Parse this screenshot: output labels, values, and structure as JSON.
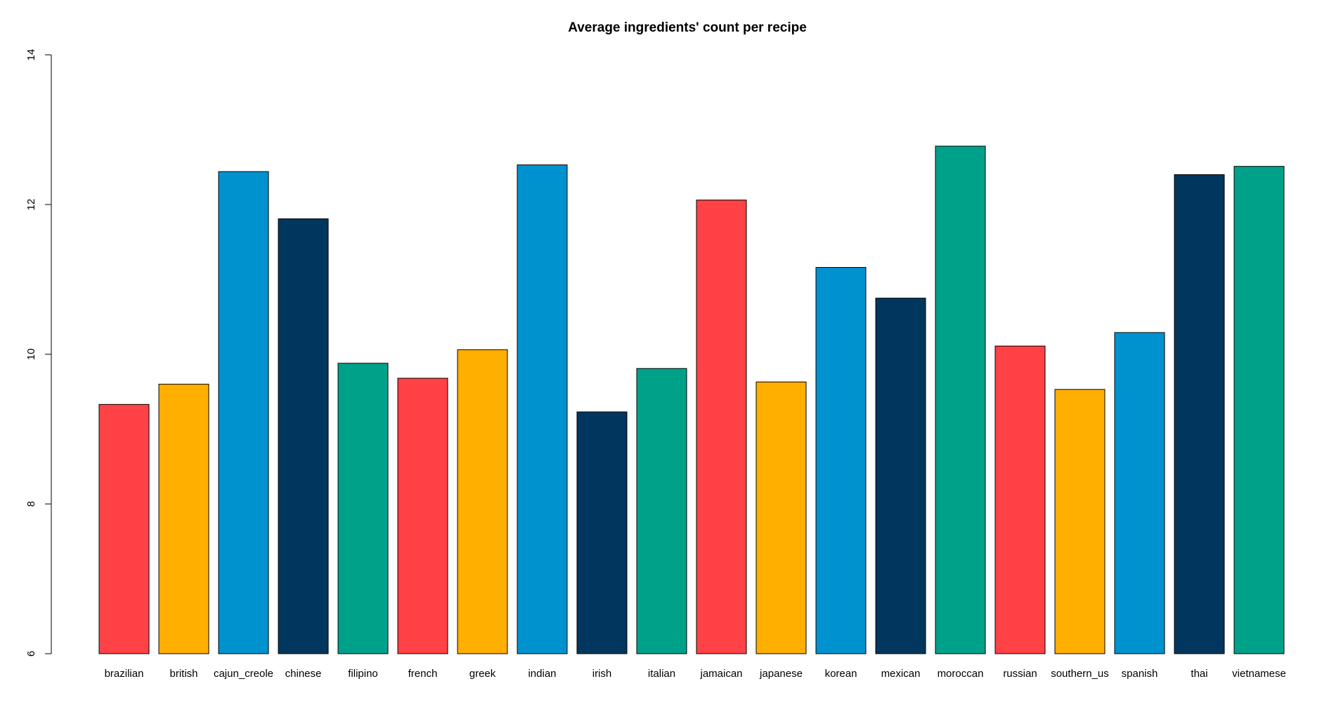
{
  "chart_data": {
    "type": "bar",
    "title": "Average ingredients' count per recipe",
    "xlabel": "",
    "ylabel": "",
    "ylim": [
      6,
      14
    ],
    "yticks": [
      6,
      8,
      10,
      12,
      14
    ],
    "grid": false,
    "categories": [
      "brazilian",
      "british",
      "cajun_creole",
      "chinese",
      "filipino",
      "french",
      "greek",
      "indian",
      "irish",
      "italian",
      "jamaican",
      "japanese",
      "korean",
      "mexican",
      "moroccan",
      "russian",
      "southern_us",
      "spanish",
      "thai",
      "vietnamese"
    ],
    "values": [
      9.33,
      9.6,
      12.44,
      11.81,
      9.88,
      9.68,
      10.06,
      12.53,
      9.23,
      9.81,
      12.06,
      9.63,
      11.16,
      10.75,
      12.78,
      10.11,
      9.53,
      10.29,
      12.4,
      12.51
    ],
    "colors": [
      "#ff4245",
      "#ffaf00",
      "#0092cf",
      "#01375e",
      "#00a189",
      "#ff4245",
      "#ffaf00",
      "#0092cf",
      "#01375e",
      "#00a189",
      "#ff4245",
      "#ffaf00",
      "#0092cf",
      "#01375e",
      "#00a189",
      "#ff4245",
      "#ffaf00",
      "#0092cf",
      "#01375e",
      "#00a189"
    ]
  }
}
